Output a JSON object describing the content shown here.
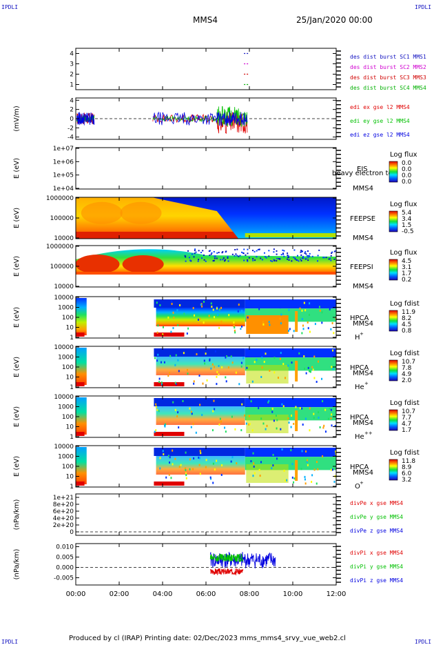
{
  "corners": {
    "tl": "IPDLI",
    "tr": "IPDLI",
    "bl": "IPDLI",
    "br": "IPDLI"
  },
  "header": {
    "spacecraft": "MMS4",
    "datetime": "25/Jan/2020 00:00"
  },
  "footer": {
    "text": "Produced by cl (IRAP)   Printing date: 02/Dec/2023   mms_mms4_srvy_vue_web2.cl"
  },
  "colors": {
    "sc1": "#1010c0",
    "sc2": "#d000d0",
    "sc3": "#d00000",
    "sc4": "#00b000",
    "ex": "#e00000",
    "ey": "#00c000",
    "ez": "#0000e0"
  },
  "chart_data": [
    {
      "type": "line",
      "id": "burst",
      "ylim": [
        0.5,
        4.5
      ],
      "yticks": [
        "4",
        "3",
        "2",
        "1"
      ],
      "legend": [
        {
          "name": "des dist burst SC1 MMS1",
          "color": "#1010c0",
          "y": 4
        },
        {
          "name": "des dist burst SC2 MMS2",
          "color": "#d000d0",
          "y": 3
        },
        {
          "name": "des dist burst SC3 MMS3",
          "color": "#d00000",
          "y": 2
        },
        {
          "name": "des dist burst SC4 MMS4",
          "color": "#00b000",
          "y": 1
        }
      ]
    },
    {
      "type": "line",
      "id": "efield",
      "ylabel": "(mV/m)",
      "ylim": [
        -4.5,
        4.5
      ],
      "yticks": [
        "4",
        "2",
        "0",
        "-2",
        "-4"
      ],
      "legend": [
        {
          "name": "edi ex gse l2 MMS4",
          "color": "#e00000"
        },
        {
          "name": "edi ey gse l2 MMS4",
          "color": "#00c000"
        },
        {
          "name": "edi ez gse l2 MMS4",
          "color": "#0000e0"
        }
      ]
    },
    {
      "type": "heatmap",
      "id": "eis",
      "ylabel": "E (eV)",
      "yticks": [
        "1e+07",
        "1e+06",
        "1e+05",
        "1e+04"
      ],
      "instrument": [
        "EIS",
        "MMS4"
      ],
      "overlay": "heavy electron to",
      "cbar_title": "Log flux",
      "cbar_ticks": [
        "0.0",
        "0.0",
        "0.0",
        "0.0"
      ]
    },
    {
      "type": "heatmap",
      "id": "feepse",
      "ylabel": "E (eV)",
      "yticks": [
        "1000000",
        "100000",
        "10000"
      ],
      "instrument": [
        "FEEPSE",
        "MMS4"
      ],
      "cbar_title": "Log flux",
      "cbar_ticks": [
        "5.4",
        "3.4",
        "1.5",
        "-0.5"
      ]
    },
    {
      "type": "heatmap",
      "id": "feepsi",
      "ylabel": "E (eV)",
      "yticks": [
        "1000000",
        "100000",
        "10000"
      ],
      "instrument": [
        "FEEPSI",
        "MMS4"
      ],
      "cbar_title": "Log flux",
      "cbar_ticks": [
        "4.5",
        "3.1",
        "1.7",
        "0.2"
      ]
    },
    {
      "type": "heatmap",
      "id": "hpca_h",
      "ylabel": "E (eV)",
      "yticks": [
        "10000",
        "1000",
        "100",
        "10",
        "1"
      ],
      "instrument": [
        "HPCA",
        "MMS4"
      ],
      "species": "H",
      "charge": "+",
      "cbar_title": "Log fdist",
      "cbar_ticks": [
        "11.9",
        "8.2",
        "4.5",
        "0.8"
      ]
    },
    {
      "type": "heatmap",
      "id": "hpca_he",
      "ylabel": "E (eV)",
      "yticks": [
        "10000",
        "1000",
        "100",
        "10",
        "1"
      ],
      "instrument": [
        "HPCA",
        "MMS4"
      ],
      "species": "He",
      "charge": "+",
      "cbar_title": "Log fdist",
      "cbar_ticks": [
        "10.7",
        "7.8",
        "4.9",
        "2.0"
      ]
    },
    {
      "type": "heatmap",
      "id": "hpca_hepp",
      "ylabel": "E (eV)",
      "yticks": [
        "10000",
        "1000",
        "100",
        "10",
        "1"
      ],
      "instrument": [
        "HPCA",
        "MMS4"
      ],
      "species": "He",
      "charge": "++",
      "cbar_title": "Log fdist",
      "cbar_ticks": [
        "10.7",
        "7.7",
        "4.7",
        "1.7"
      ]
    },
    {
      "type": "heatmap",
      "id": "hpca_o",
      "ylabel": "E (eV)",
      "yticks": [
        "10000",
        "1000",
        "100",
        "10",
        "1"
      ],
      "instrument": [
        "HPCA",
        "MMS4"
      ],
      "species": "O",
      "charge": "+",
      "cbar_title": "Log fdist",
      "cbar_ticks": [
        "11.8",
        "8.9",
        "6.0",
        "3.2"
      ]
    },
    {
      "type": "line",
      "id": "divpe",
      "ylabel": "(nPa/km)",
      "ylim": [
        -1e+20,
        1.1e+21
      ],
      "yticks": [
        "1e+21",
        "8e+20",
        "6e+20",
        "4e+20",
        "2e+20",
        "0"
      ],
      "legend": [
        {
          "name": "divPe x gse MMS4",
          "color": "#e00000"
        },
        {
          "name": "divPe y gse MMS4",
          "color": "#00c000"
        },
        {
          "name": "divPe z gse MMS4",
          "color": "#0000e0"
        }
      ]
    },
    {
      "type": "line",
      "id": "divpi",
      "ylabel": "(nPa/km)",
      "ylim": [
        -0.0085,
        0.0115
      ],
      "yticks": [
        "0.010",
        "0.005",
        "0.000",
        "-0.005"
      ],
      "legend": [
        {
          "name": "divPi x gse MMS4",
          "color": "#e00000"
        },
        {
          "name": "divPi y gse MMS4",
          "color": "#00c000"
        },
        {
          "name": "divPi z gse MMS4",
          "color": "#0000e0"
        }
      ]
    }
  ],
  "xaxis": {
    "ticks": [
      "00:00",
      "02:00",
      "04:00",
      "06:00",
      "08:00",
      "10:00",
      "12:00"
    ],
    "range_hours": [
      0,
      12
    ]
  }
}
